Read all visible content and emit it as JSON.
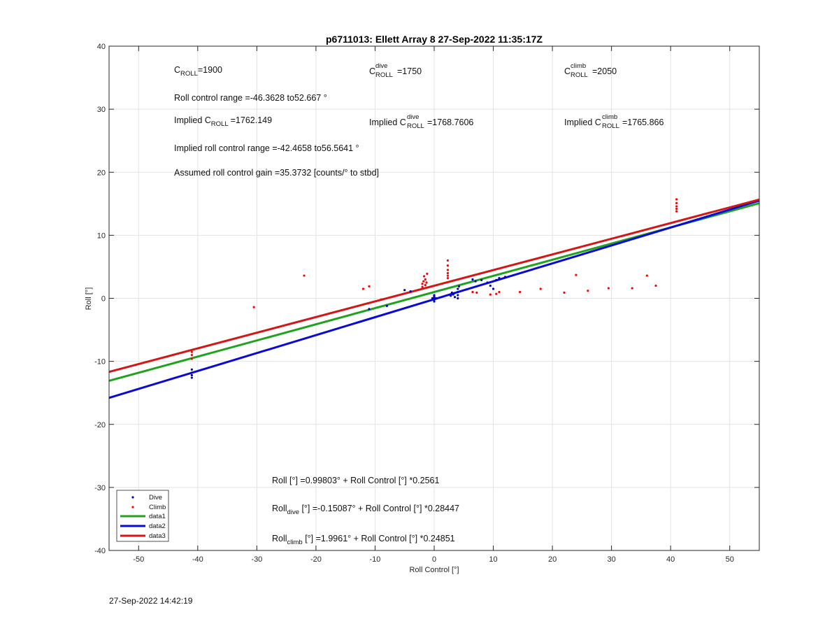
{
  "chart_data": {
    "type": "scatter",
    "title": "p6711013: Ellett Array 8 27-Sep-2022 11:35:17Z",
    "xlabel": "Roll Control [°]",
    "ylabel": "Roll [°]",
    "xlim": [
      -55,
      55
    ],
    "ylim": [
      -40,
      40
    ],
    "xticks": [
      -50,
      -40,
      -30,
      -20,
      -10,
      0,
      10,
      20,
      30,
      40,
      50
    ],
    "yticks": [
      -40,
      -30,
      -20,
      -10,
      0,
      10,
      20,
      30,
      40
    ],
    "grid": true,
    "legend_position": "bottom-left",
    "series": [
      {
        "name": "Dive",
        "kind": "points",
        "color": "#0000cc",
        "points": [
          [
            -41,
            -11.3
          ],
          [
            -41,
            -11.8
          ],
          [
            -41,
            -12.2
          ],
          [
            -41,
            -12.6
          ],
          [
            -11,
            -1.7
          ],
          [
            -8,
            -1.2
          ],
          [
            -5,
            1.3
          ],
          [
            -4,
            1.1
          ],
          [
            0,
            -0.5
          ],
          [
            0,
            -0.2
          ],
          [
            0,
            0.1
          ],
          [
            0,
            0.3
          ],
          [
            0,
            0.5
          ],
          [
            -0.3,
            0
          ],
          [
            0.3,
            0
          ],
          [
            2.8,
            0.4
          ],
          [
            3,
            0.9
          ],
          [
            3.2,
            0.6
          ],
          [
            3.5,
            0.2
          ],
          [
            3.4,
            0.8
          ],
          [
            4,
            0
          ],
          [
            4,
            0.5
          ],
          [
            4,
            1.0
          ],
          [
            4,
            1.5
          ],
          [
            4.2,
            1.9
          ],
          [
            6.5,
            3.0
          ],
          [
            7,
            2.7
          ],
          [
            8,
            2.9
          ],
          [
            9,
            2.5
          ],
          [
            9.5,
            2.0
          ],
          [
            10,
            1.5
          ],
          [
            10.5,
            2.9
          ],
          [
            11,
            3.2
          ],
          [
            12,
            3.4
          ]
        ]
      },
      {
        "name": "Climb",
        "kind": "points",
        "color": "#ff0000",
        "points": [
          [
            -41,
            -8.5
          ],
          [
            -41,
            -9.0
          ],
          [
            -41,
            -9.6
          ],
          [
            -30.5,
            -1.4
          ],
          [
            -22,
            3.6
          ],
          [
            -12,
            1.5
          ],
          [
            -11,
            1.9
          ],
          [
            -9,
            -0.2
          ],
          [
            -2,
            1.8
          ],
          [
            -2,
            2.3
          ],
          [
            -1.8,
            2.7
          ],
          [
            -1.5,
            2.1
          ],
          [
            -1.5,
            3.0
          ],
          [
            -1.3,
            2.5
          ],
          [
            -1.7,
            3.5
          ],
          [
            -1.2,
            3.9
          ],
          [
            2.3,
            3.2
          ],
          [
            2.3,
            3.6
          ],
          [
            2.3,
            4.0
          ],
          [
            2.3,
            4.5
          ],
          [
            2.3,
            5.2
          ],
          [
            2.3,
            6.0
          ],
          [
            6.5,
            1.0
          ],
          [
            7.2,
            0.9
          ],
          [
            9.5,
            0.6
          ],
          [
            10.5,
            0.7
          ],
          [
            11,
            1.0
          ],
          [
            14.5,
            1.0
          ],
          [
            18,
            1.5
          ],
          [
            22,
            0.9
          ],
          [
            24,
            3.7
          ],
          [
            26,
            1.2
          ],
          [
            29.5,
            1.6
          ],
          [
            33.5,
            1.6
          ],
          [
            36,
            3.6
          ],
          [
            37.5,
            2.0
          ],
          [
            41,
            13.8
          ],
          [
            41,
            14.2
          ],
          [
            41,
            14.6
          ],
          [
            41,
            15.1
          ],
          [
            41,
            15.7
          ]
        ]
      },
      {
        "name": "data1",
        "kind": "line",
        "color": "#1fa31f",
        "intercept": 0.99803,
        "slope": 0.2561
      },
      {
        "name": "data2",
        "kind": "line",
        "color": "#0a0ad6",
        "intercept": -0.15087,
        "slope": 0.28447
      },
      {
        "name": "data3",
        "kind": "line",
        "color": "#d41616",
        "intercept": 1.9961,
        "slope": 0.24851
      }
    ],
    "annotations": {
      "croll": {
        "base": "C",
        "sub": "ROLL",
        "value": "=1900"
      },
      "croll_dive": {
        "base": "C",
        "sup": "dive",
        "sub": "ROLL",
        "value": "=1750"
      },
      "croll_climb": {
        "base": "C",
        "sup": "climb",
        "sub": "ROLL",
        "value": "=2050"
      },
      "roll_range": "Roll control range =-46.3628 to52.667 °",
      "implied_croll": {
        "prefix": "Implied C",
        "sub": "ROLL",
        "value": "=1762.149"
      },
      "implied_croll_dive": {
        "prefix": "Implied C",
        "sup": "dive",
        "sub": "ROLL",
        "value": "=1768.7606"
      },
      "implied_croll_climb": {
        "prefix": "Implied C",
        "sup": "climb",
        "sub": "ROLL",
        "value": "=1765.866"
      },
      "implied_range": "Implied roll control range =-42.4658 to56.5641 °",
      "gain": "Assumed roll control gain =35.3732 [counts/° to stbd]",
      "eq_all": "Roll [°] =0.99803° + Roll Control [°] *0.2561",
      "eq_dive": {
        "base": "Roll",
        "sub": "dive",
        "rest": " [°] =-0.15087° + Roll Control [°] *0.28447"
      },
      "eq_climb": {
        "base": "Roll",
        "sub": "climb",
        "rest": " [°] =1.9961° + Roll Control [°] *0.24851"
      }
    }
  },
  "footer_timestamp": "27-Sep-2022 14:42:19"
}
